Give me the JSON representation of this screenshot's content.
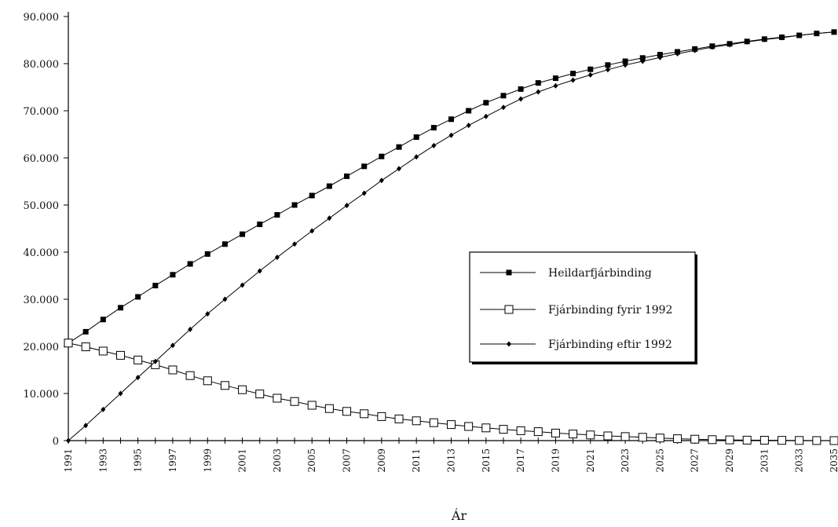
{
  "chart_data": {
    "type": "line",
    "title": "",
    "xlabel": "Ár",
    "ylabel": "",
    "xlim": [
      1991,
      2035
    ],
    "ylim": [
      0,
      90000
    ],
    "y_ticks": [
      0,
      10000,
      20000,
      30000,
      40000,
      50000,
      60000,
      70000,
      80000,
      90000
    ],
    "y_tick_labels": [
      "0",
      "10.000",
      "20.000",
      "30.000",
      "40.000",
      "50.000",
      "60.000",
      "70.000",
      "80.000",
      "90.000"
    ],
    "x_tick_labels": [
      "1991",
      "1993",
      "1995",
      "1997",
      "1999",
      "2001",
      "2003",
      "2005",
      "2007",
      "2009",
      "2011",
      "2013",
      "2015",
      "2017",
      "2019",
      "2021",
      "2023",
      "2025",
      "2027",
      "2029",
      "2031",
      "2033",
      "2035"
    ],
    "grid": false,
    "legend_position": "center-right",
    "x": [
      1991,
      1992,
      1993,
      1994,
      1995,
      1996,
      1997,
      1998,
      1999,
      2000,
      2001,
      2002,
      2003,
      2004,
      2005,
      2006,
      2007,
      2008,
      2009,
      2010,
      2011,
      2012,
      2013,
      2014,
      2015,
      2016,
      2017,
      2018,
      2019,
      2020,
      2021,
      2022,
      2023,
      2024,
      2025,
      2026,
      2027,
      2028,
      2029,
      2030,
      2031,
      2032,
      2033,
      2034,
      2035
    ],
    "series": [
      {
        "name": "Heildarfjárbinding",
        "marker": "filled-square",
        "values": [
          20700,
          23100,
          25700,
          28200,
          30500,
          32900,
          35200,
          37500,
          39600,
          41700,
          43800,
          45900,
          47900,
          50000,
          52000,
          54000,
          56100,
          58200,
          60300,
          62300,
          64400,
          66400,
          68200,
          70000,
          71700,
          73200,
          74600,
          75900,
          76900,
          77900,
          78800,
          79700,
          80500,
          81200,
          81900,
          82500,
          83100,
          83700,
          84200,
          84700,
          85200,
          85600,
          86000,
          86400,
          86700
        ]
      },
      {
        "name": "Fjárbinding fyrir 1992",
        "marker": "open-square",
        "values": [
          20700,
          19900,
          19000,
          18100,
          17100,
          16100,
          15000,
          13800,
          12700,
          11700,
          10800,
          9900,
          9000,
          8300,
          7500,
          6800,
          6200,
          5700,
          5100,
          4600,
          4200,
          3800,
          3400,
          3000,
          2700,
          2400,
          2100,
          1900,
          1600,
          1400,
          1200,
          1000,
          850,
          700,
          550,
          400,
          300,
          200,
          150,
          100,
          80,
          50,
          30,
          10,
          0
        ]
      },
      {
        "name": "Fjárbinding eftir 1992",
        "marker": "filled-diamond",
        "values": [
          0,
          3200,
          6600,
          10000,
          13400,
          16800,
          20200,
          23600,
          26900,
          30000,
          33000,
          36000,
          38900,
          41700,
          44500,
          47200,
          49900,
          52500,
          55200,
          57700,
          60200,
          62600,
          64800,
          66900,
          68800,
          70700,
          72500,
          74000,
          75300,
          76500,
          77600,
          78700,
          79700,
          80500,
          81300,
          82100,
          82800,
          83500,
          84000,
          84600,
          85100,
          85500,
          86000,
          86400,
          86700
        ]
      }
    ]
  }
}
